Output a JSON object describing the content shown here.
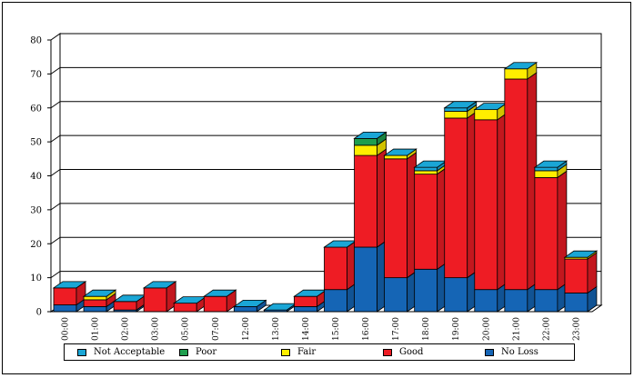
{
  "chart_data": {
    "type": "bar",
    "stacked": true,
    "style": "3d",
    "title": "",
    "xlabel": "",
    "ylabel": "",
    "ylim": [
      0,
      80
    ],
    "yticks": [
      0,
      10,
      20,
      30,
      40,
      50,
      60,
      70,
      80
    ],
    "grid": true,
    "legend_position": "bottom",
    "categories": [
      "00:00",
      "01:00",
      "02:00",
      "03:00",
      "05:00",
      "07:00",
      "12:00",
      "13:00",
      "14:00",
      "15:00",
      "16:00",
      "17:00",
      "18:00",
      "19:00",
      "20:00",
      "21:00",
      "22:00",
      "23:00"
    ],
    "series": [
      {
        "name": "No Loss",
        "color": "#1565b5",
        "values": [
          2,
          1.5,
          0.5,
          0,
          0,
          0,
          1.5,
          0.5,
          1.5,
          6.5,
          19,
          10,
          12.5,
          10,
          6.5,
          6.5,
          6.5,
          5.5
        ]
      },
      {
        "name": "Good",
        "color": "#ee1c24",
        "values": [
          5,
          2,
          2.5,
          7,
          2.5,
          4.5,
          0,
          0,
          3,
          12.5,
          27,
          35,
          28,
          47,
          50,
          62,
          33,
          10
        ]
      },
      {
        "name": "Fair",
        "color": "#ffee00",
        "values": [
          0,
          1,
          0,
          0,
          0,
          0,
          0,
          0,
          0,
          0,
          3,
          1,
          1,
          2,
          3,
          3,
          2,
          0.5
        ]
      },
      {
        "name": "Poor",
        "color": "#1e9e4e",
        "values": [
          0,
          0,
          0,
          0,
          0,
          0,
          0,
          0,
          0,
          0,
          2,
          0,
          0,
          0,
          0,
          0,
          0,
          0
        ]
      },
      {
        "name": "Not Acceptable",
        "color": "#1aa6d6",
        "values": [
          0,
          0,
          0,
          0,
          0,
          0,
          0,
          0,
          0,
          0,
          0,
          0,
          1,
          1,
          0,
          0,
          1,
          0
        ]
      }
    ],
    "legend_order": [
      "Not Acceptable",
      "Poor",
      "Fair",
      "Good",
      "No Loss"
    ]
  }
}
